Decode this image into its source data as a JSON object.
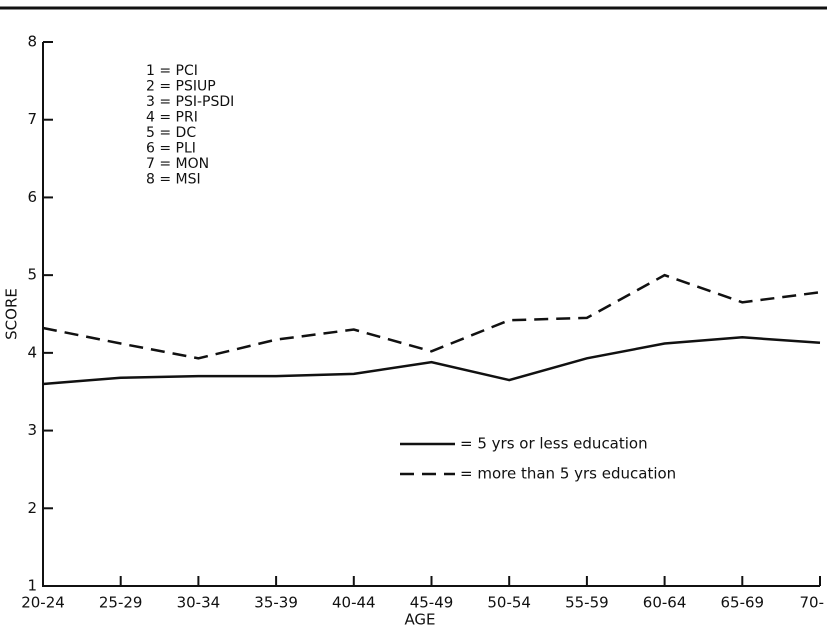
{
  "chart_data": {
    "type": "line",
    "x_label": "AGE",
    "y_label": "SCORE",
    "categories": [
      "20-24",
      "25-29",
      "30-34",
      "35-39",
      "40-44",
      "45-49",
      "50-54",
      "55-59",
      "60-64",
      "65-69",
      "70-"
    ],
    "series": [
      {
        "name": "= 5 yrs or less education",
        "color": "#111111",
        "dash": "solid",
        "values": [
          3.6,
          3.68,
          3.7,
          3.7,
          3.73,
          3.88,
          3.65,
          3.93,
          4.12,
          4.2,
          4.13
        ]
      },
      {
        "name": "= more than 5 yrs education",
        "color": "#111111",
        "dash": "dashed",
        "values": [
          4.32,
          4.12,
          3.93,
          4.17,
          4.3,
          4.02,
          4.42,
          4.45,
          5.0,
          4.65,
          4.78
        ]
      }
    ],
    "ylim": [
      1,
      8
    ],
    "yticks": [
      1,
      2,
      3,
      4,
      5,
      6,
      7,
      8
    ],
    "annotations": [
      "1 = PCI",
      "2 = PSIUP",
      "3 = PSI-PSDI",
      "4 = PRI",
      "5 = DC",
      "6 = PLI",
      "7 = MON",
      "8 = MSI"
    ]
  }
}
